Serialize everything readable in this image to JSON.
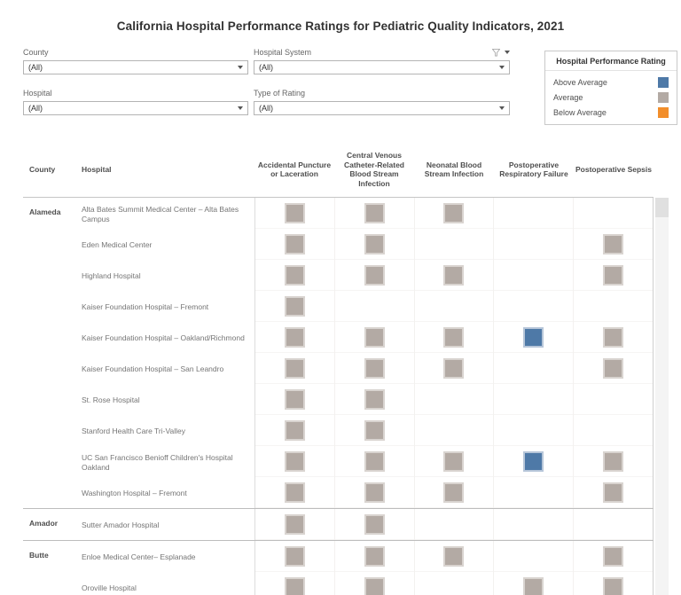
{
  "title": "California Hospital Performance Ratings for Pediatric Quality Indicators, 2021",
  "filters": [
    {
      "label": "County",
      "value": "(All)"
    },
    {
      "label": "Hospital",
      "value": "(All)"
    },
    {
      "label": "Hospital System",
      "value": "(All)"
    },
    {
      "label": "Type of Rating",
      "value": "(All)"
    }
  ],
  "legend": {
    "title": "Hospital Performance Rating",
    "items": [
      {
        "label": "Above Average",
        "color": "#4e79a7"
      },
      {
        "label": "Average",
        "color": "#b3aaa4"
      },
      {
        "label": "Below Average",
        "color": "#f28e2b"
      }
    ]
  },
  "table": {
    "county_header": "County",
    "hospital_header": "Hospital",
    "columns": [
      "Accidental Puncture or Laceration",
      "Central Venous Catheter-Related Blood Stream Infection",
      "Neonatal Blood Stream Infection",
      "Postoperative Respiratory Failure",
      "Postoperative Sepsis"
    ],
    "rating_colors": {
      "above": "#4e79a7",
      "avg": "#b3aaa4",
      "below": "#f28e2b"
    },
    "groups": [
      {
        "county": "Alameda",
        "rows": [
          {
            "hospital": "Alta Bates Summit Medical Center – Alta Bates Campus",
            "ratings": [
              "avg",
              "avg",
              "avg",
              null,
              null
            ]
          },
          {
            "hospital": "Eden Medical Center",
            "ratings": [
              "avg",
              "avg",
              null,
              null,
              "avg"
            ]
          },
          {
            "hospital": "Highland Hospital",
            "ratings": [
              "avg",
              "avg",
              "avg",
              null,
              "avg"
            ]
          },
          {
            "hospital": "Kaiser Foundation Hospital – Fremont",
            "ratings": [
              "avg",
              null,
              null,
              null,
              null
            ]
          },
          {
            "hospital": "Kaiser Foundation Hospital – Oakland/Richmond",
            "ratings": [
              "avg",
              "avg",
              "avg",
              "above",
              "avg"
            ]
          },
          {
            "hospital": "Kaiser Foundation Hospital – San Leandro",
            "ratings": [
              "avg",
              "avg",
              "avg",
              null,
              "avg"
            ]
          },
          {
            "hospital": "St. Rose Hospital",
            "ratings": [
              "avg",
              "avg",
              null,
              null,
              null
            ]
          },
          {
            "hospital": "Stanford Health Care Tri-Valley",
            "ratings": [
              "avg",
              "avg",
              null,
              null,
              null
            ]
          },
          {
            "hospital": "UC San Francisco Benioff Children's Hospital Oakland",
            "ratings": [
              "avg",
              "avg",
              "avg",
              "above",
              "avg"
            ]
          },
          {
            "hospital": "Washington Hospital – Fremont",
            "ratings": [
              "avg",
              "avg",
              "avg",
              null,
              "avg"
            ]
          }
        ]
      },
      {
        "county": "Amador",
        "rows": [
          {
            "hospital": "Sutter Amador Hospital",
            "ratings": [
              "avg",
              "avg",
              null,
              null,
              null
            ]
          }
        ]
      },
      {
        "county": "Butte",
        "rows": [
          {
            "hospital": "Enloe Medical Center– Esplanade",
            "ratings": [
              "avg",
              "avg",
              "avg",
              null,
              "avg"
            ]
          },
          {
            "hospital": "Oroville Hospital",
            "ratings": [
              "avg",
              "avg",
              null,
              "avg",
              "avg"
            ]
          }
        ]
      }
    ]
  }
}
